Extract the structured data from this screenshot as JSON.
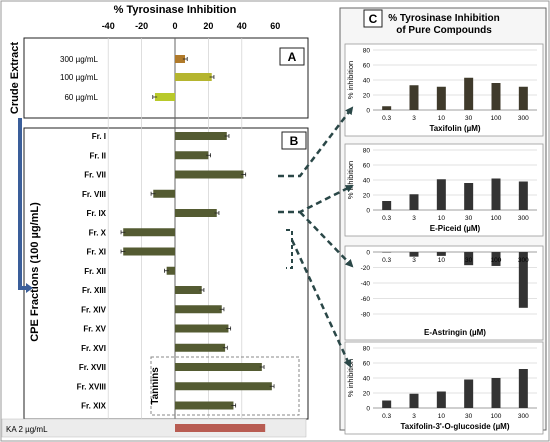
{
  "chart_data": [
    {
      "type": "bar",
      "orientation": "horizontal",
      "title": "% Tyrosinase Inhibition",
      "xlim": [
        -40,
        60
      ],
      "x_ticks": [
        "-40",
        "-20",
        "0",
        "20",
        "40",
        "60"
      ],
      "grid": true,
      "panels": [
        {
          "label": "A",
          "group_label": "Crude  Extract",
          "categories": [
            "300 µg/mL",
            "100 µg/mL",
            "60 µg/mL"
          ],
          "values": [
            6,
            22,
            -12
          ],
          "colors": [
            "#b07a2a",
            "#b5b52f",
            "#b8c92a"
          ]
        },
        {
          "label": "B",
          "group_label": "CPE Fractions (100 µg/mL)",
          "categories": [
            "Fr. I",
            "Fr. II",
            "Fr. VII",
            "Fr. VIII",
            "Fr. IX",
            "Fr. X",
            "Fr. XI",
            "Fr. XII",
            "Fr. XIII",
            "Fr. XIV",
            "Fr. XV",
            "Fr. XVI",
            "Fr. XVII",
            "Fr. XVIII",
            "Fr. XIX"
          ],
          "values": [
            31,
            20,
            41,
            -13,
            25,
            -31,
            -31,
            -5,
            16,
            28,
            32,
            30,
            52,
            58,
            35
          ],
          "color": "#545b32",
          "annotation": "Tannins"
        }
      ],
      "reference": {
        "label": "KA  2 µg/mL",
        "value": 54,
        "color": "#b85c52"
      }
    },
    {
      "panel_label": "C",
      "title": "% Tyrosinase Inhibition of Pure Compounds",
      "charts": [
        {
          "type": "bar",
          "xlabel": "Taxifolin (µM)",
          "ylabel": "% inhibition",
          "categories": [
            "0.3",
            "3",
            "10",
            "30",
            "100",
            "300"
          ],
          "values": [
            5,
            33,
            31,
            43,
            36,
            31
          ],
          "ylim": [
            0,
            80
          ],
          "yticks": [
            "0",
            "20",
            "40",
            "60",
            "80"
          ],
          "color": "#3f3a2b"
        },
        {
          "type": "bar",
          "xlabel": "E-Piceid (µM)",
          "ylabel": "% inhibition",
          "categories": [
            "0.3",
            "3",
            "10",
            "30",
            "100",
            "300"
          ],
          "values": [
            12,
            21,
            41,
            36,
            42,
            38
          ],
          "ylim": [
            0,
            80
          ],
          "yticks": [
            "0",
            "20",
            "40",
            "60",
            "80"
          ],
          "color": "#333333"
        },
        {
          "type": "bar",
          "xlabel": "E-Astringin (µM)",
          "ylabel": "",
          "categories": [
            "0.3",
            "3",
            "10",
            "30",
            "100",
            "300"
          ],
          "values": [
            0,
            -6,
            -5,
            -17,
            -18,
            -72
          ],
          "ylim": [
            -80,
            0
          ],
          "yticks": [
            "0",
            "-20",
            "-40",
            "-60",
            "-80"
          ],
          "color": "#333333"
        },
        {
          "type": "bar",
          "xlabel": "Taxifolin-3'-O-glucoside (µM)",
          "ylabel": "% inhibition",
          "categories": [
            "0.3",
            "3",
            "10",
            "30",
            "100",
            "300"
          ],
          "values": [
            10,
            19,
            22,
            38,
            40,
            52
          ],
          "ylim": [
            0,
            80
          ],
          "yticks": [
            "0",
            "20",
            "40",
            "60",
            "80"
          ],
          "color": "#333333"
        }
      ]
    }
  ]
}
